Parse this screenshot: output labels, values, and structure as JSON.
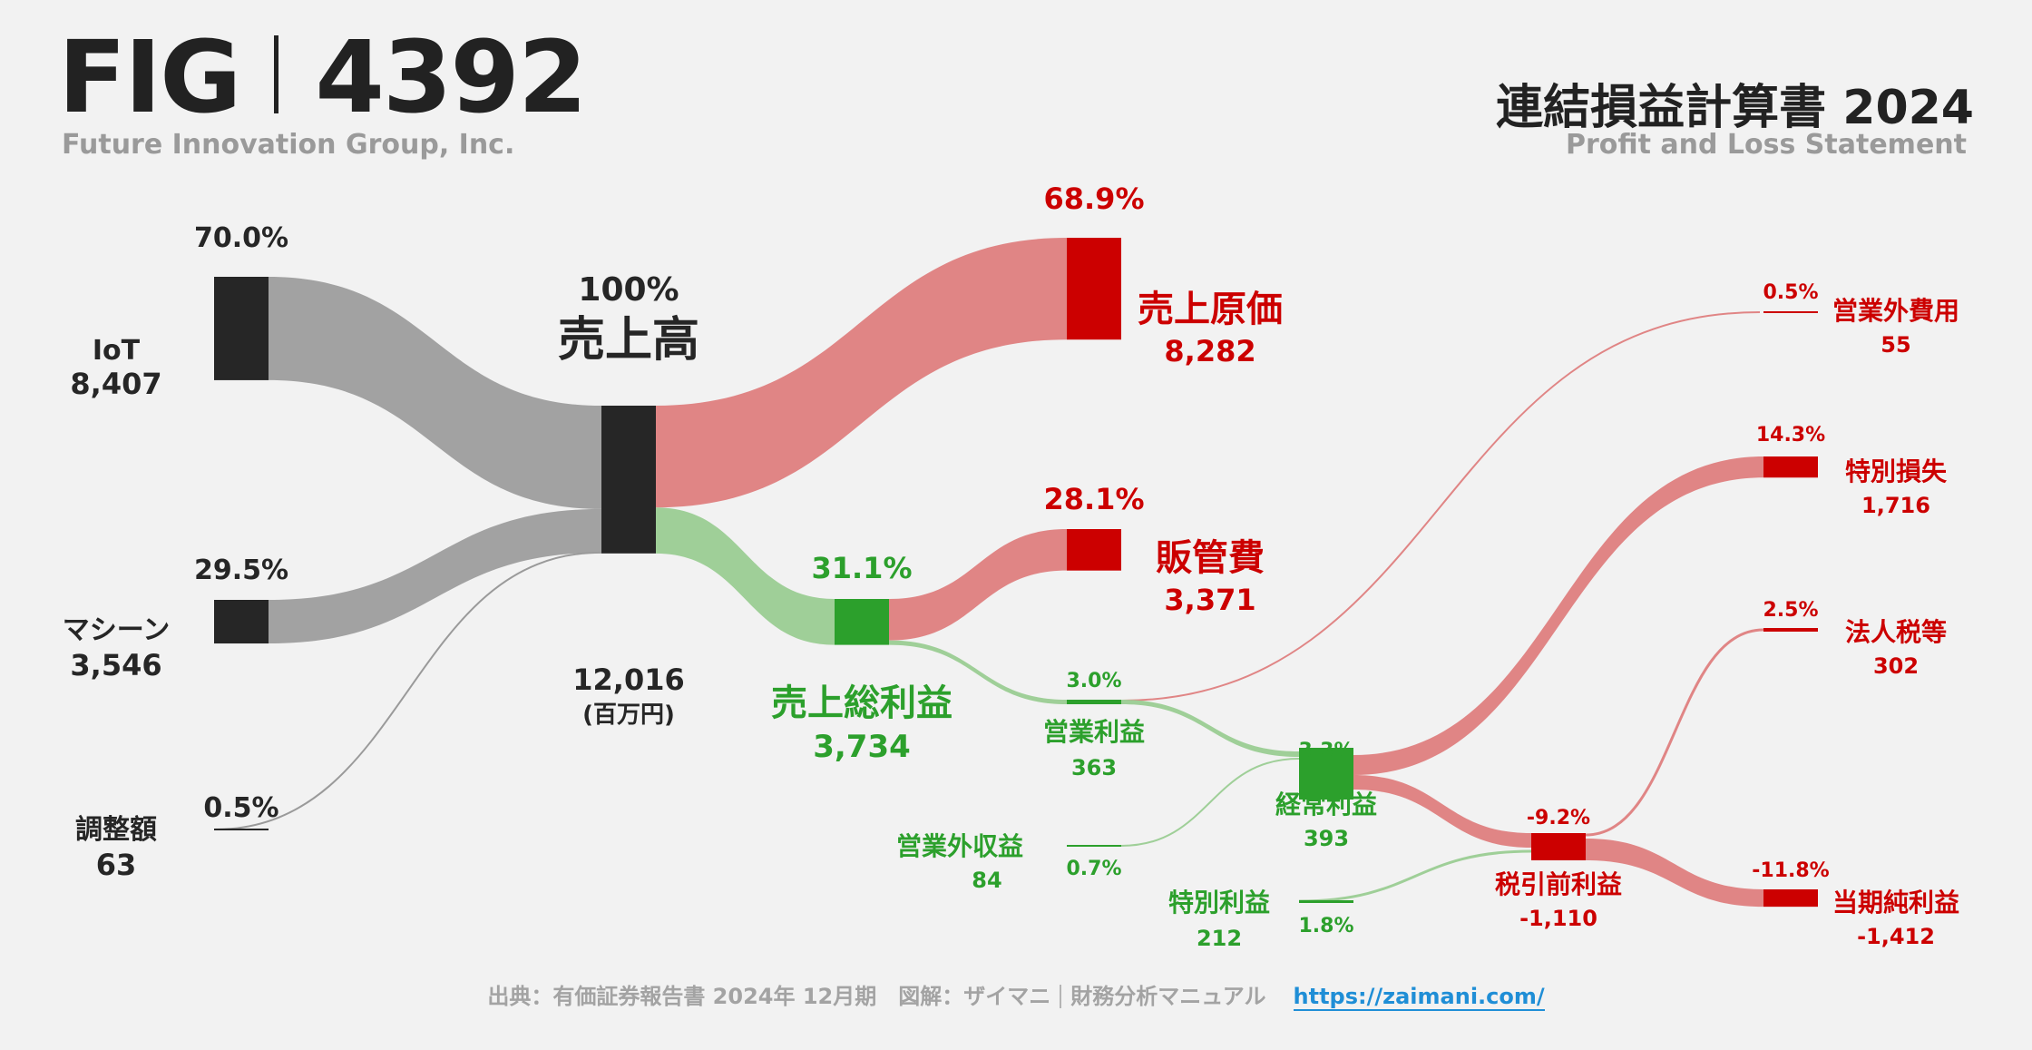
{
  "header": {
    "ticker_left": "FIG",
    "ticker_right": "4392",
    "company": "Future Innovation Group, Inc.",
    "title_jp": "連結損益計算書 2024",
    "title_en": "Profit and Loss Statement"
  },
  "footer": {
    "source": "出典：有価証券報告書 2024年 12月期　図解：ザイマニ",
    "site_name": "財務分析マニュアル",
    "url": "https://zaimani.com/"
  },
  "colors": {
    "black": "#262626",
    "gray_flow": "#a2a2a2",
    "red": "#cc0000",
    "red_flow": "#e08585",
    "green": "#2ca02c",
    "green_flow": "#9fcf98",
    "text_dark": "#262626"
  },
  "chart_data": {
    "type": "sankey",
    "unit": "(百万円)",
    "nodes": [
      {
        "id": "iot",
        "label": "IoT",
        "value": "8,407",
        "pct": "70.0%"
      },
      {
        "id": "machine",
        "label": "マシーン",
        "value": "3,546",
        "pct": "29.5%"
      },
      {
        "id": "adjust",
        "label": "調整額",
        "value": "63",
        "pct": "0.5%"
      },
      {
        "id": "revenue",
        "label": "売上高",
        "value": "12,016",
        "pct": "100%"
      },
      {
        "id": "cogs",
        "label": "売上原価",
        "value": "8,282",
        "pct": "68.9%"
      },
      {
        "id": "gross",
        "label": "売上総利益",
        "value": "3,734",
        "pct": "31.1%"
      },
      {
        "id": "sga",
        "label": "販管費",
        "value": "3,371",
        "pct": "28.1%"
      },
      {
        "id": "op",
        "label": "営業利益",
        "value": "363",
        "pct": "3.0%"
      },
      {
        "id": "nonop_inc",
        "label": "営業外収益",
        "value": "84",
        "pct": "0.7%"
      },
      {
        "id": "nonop_exp",
        "label": "営業外費用",
        "value": "55",
        "pct": "0.5%"
      },
      {
        "id": "ordinary",
        "label": "経常利益",
        "value": "393",
        "pct": "3.3%"
      },
      {
        "id": "special_gain",
        "label": "特別利益",
        "value": "212",
        "pct": "1.8%"
      },
      {
        "id": "special_loss",
        "label": "特別損失",
        "value": "1,716",
        "pct": "14.3%"
      },
      {
        "id": "pretax",
        "label": "税引前利益",
        "value": "-1,110",
        "pct": "-9.2%"
      },
      {
        "id": "tax",
        "label": "法人税等",
        "value": "302",
        "pct": "2.5%"
      },
      {
        "id": "net",
        "label": "当期純利益",
        "value": "-1,412",
        "pct": "-11.8%"
      }
    ],
    "links": [
      {
        "source": "iot",
        "target": "revenue",
        "value": 8407
      },
      {
        "source": "machine",
        "target": "revenue",
        "value": 3546
      },
      {
        "source": "adjust",
        "target": "revenue",
        "value": 63
      },
      {
        "source": "revenue",
        "target": "cogs",
        "value": 8282
      },
      {
        "source": "revenue",
        "target": "gross",
        "value": 3734
      },
      {
        "source": "gross",
        "target": "sga",
        "value": 3371
      },
      {
        "source": "gross",
        "target": "op",
        "value": 363
      },
      {
        "source": "op",
        "target": "ordinary",
        "value": 363
      },
      {
        "source": "nonop_inc",
        "target": "ordinary",
        "value": 84
      },
      {
        "source": "op",
        "target": "nonop_exp",
        "value": 55
      },
      {
        "source": "ordinary",
        "target": "special_loss",
        "value": 1716
      },
      {
        "source": "ordinary",
        "target": "pretax",
        "value": 1110
      },
      {
        "source": "special_gain",
        "target": "pretax",
        "value": 212
      },
      {
        "source": "pretax",
        "target": "tax",
        "value": 302
      },
      {
        "source": "pretax",
        "target": "net",
        "value": 1412
      }
    ]
  }
}
